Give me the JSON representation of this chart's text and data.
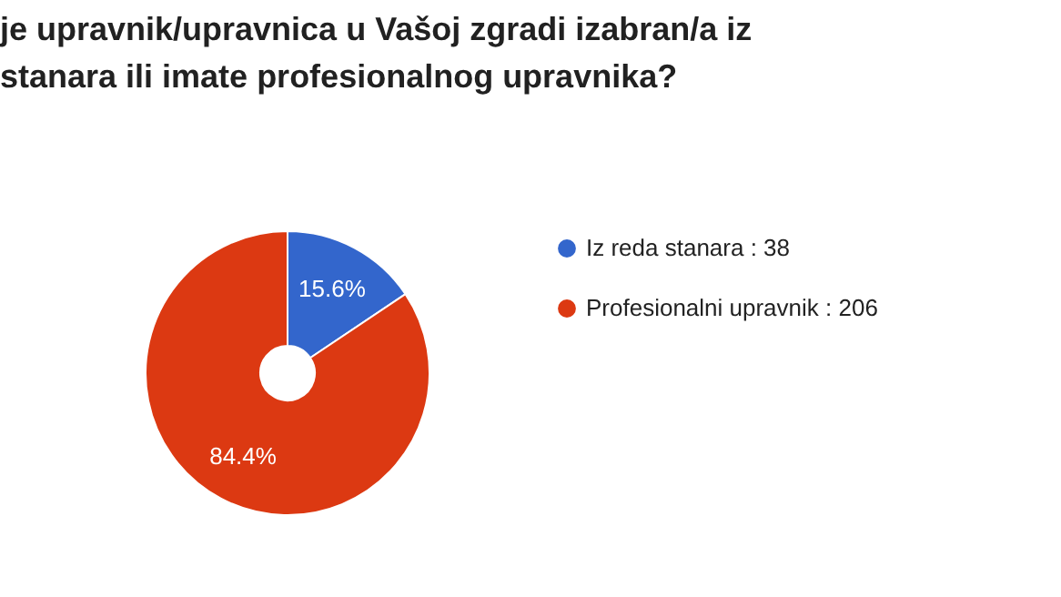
{
  "chart_data": {
    "type": "donut",
    "title": "je upravnik/upravnica u Vašoj zgradi izabran/a iz stanara ili imate profesionalnog upravnika?",
    "categories": [
      "Iz reda stanara : 38",
      "Profesionalni upravnik : 206"
    ],
    "values": [
      15.6,
      84.4
    ],
    "colors": [
      "#3366cc",
      "#dc3912"
    ],
    "value_labels": [
      "15.6%",
      "84.4%"
    ],
    "legend": "right"
  }
}
